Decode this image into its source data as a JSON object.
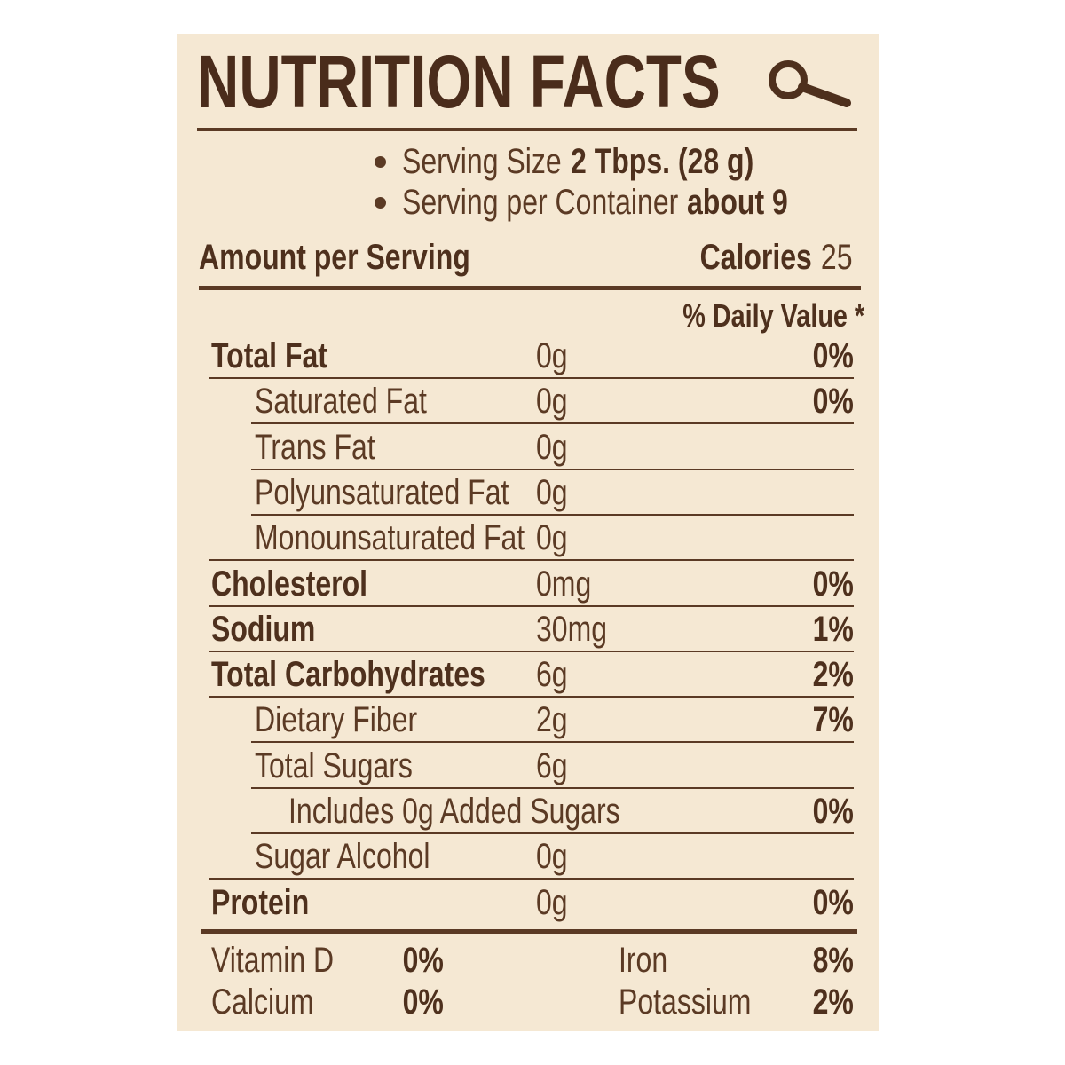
{
  "title": "NUTRITION FACTS",
  "serving": [
    {
      "label": "Serving Size",
      "value": "2 Tbps. (28 g)"
    },
    {
      "label": "Serving per Container",
      "value": "about 9"
    }
  ],
  "amount_per_serving": "Amount per Serving",
  "calories": {
    "label": "Calories",
    "value": "25"
  },
  "daily_value_header": "% Daily Value *",
  "rows": [
    {
      "name": "Total Fat",
      "amount": "0g",
      "dv": "0%"
    },
    {
      "name": "Saturated Fat",
      "amount": "0g",
      "dv": "0%"
    },
    {
      "name": "Trans Fat",
      "amount": "0g"
    },
    {
      "name": "Polyunsaturated Fat",
      "amount": "0g"
    },
    {
      "name": "Monounsaturated Fat",
      "amount": "0g"
    },
    {
      "name": "Cholesterol",
      "amount": "0mg",
      "dv": "0%"
    },
    {
      "name": "Sodium",
      "amount": "30mg",
      "dv": "1%"
    },
    {
      "name": "Total Carbohydrates",
      "amount": "6g",
      "dv": "2%"
    },
    {
      "name": "Dietary Fiber",
      "amount": "2g",
      "dv": "7%"
    },
    {
      "name": "Total Sugars",
      "amount": "6g"
    },
    {
      "name": "Includes 0g Added Sugars",
      "dv": "0%"
    },
    {
      "name": "Sugar Alcohol",
      "amount": "0g"
    },
    {
      "name": "Protein",
      "amount": "0g",
      "dv": "0%"
    }
  ],
  "vitamins": [
    {
      "name": "Vitamin D",
      "dv": "0%"
    },
    {
      "name": "Iron",
      "dv": "8%"
    },
    {
      "name": "Calcium",
      "dv": "0%"
    },
    {
      "name": "Potassium",
      "dv": "2%"
    }
  ]
}
